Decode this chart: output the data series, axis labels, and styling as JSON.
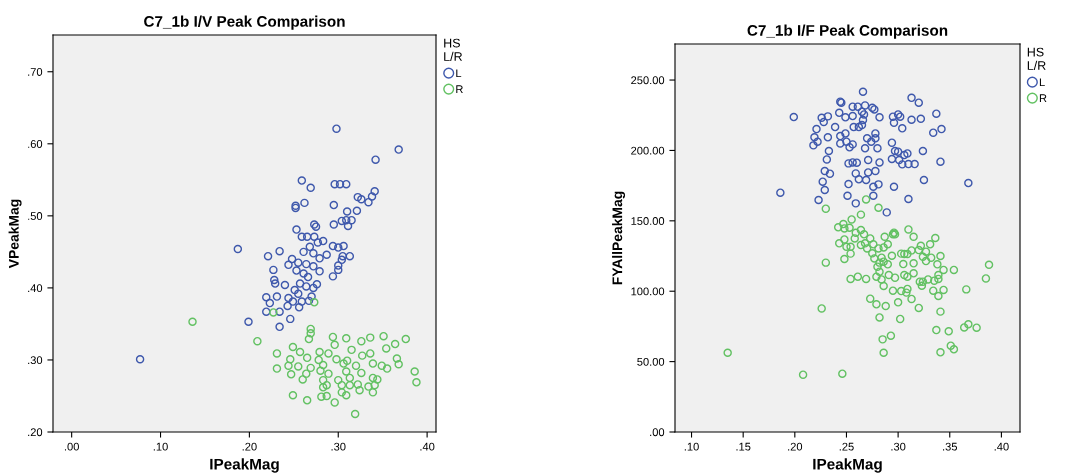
{
  "chart_data": [
    {
      "type": "scatter",
      "title": "C7_1b I/V Peak Comparison",
      "xlabel": "IPeakMag",
      "ylabel": "VPeakMag",
      "legend_title": "HS\nL/R",
      "legend": "right",
      "marker": "circle",
      "grid": false,
      "xlim": [
        -0.021,
        0.41
      ],
      "ylim": [
        0.2,
        0.751
      ],
      "xticks": [
        {
          "value": 0,
          "label": ".00"
        },
        {
          "value": 0.1,
          "label": ".10"
        },
        {
          "value": 0.2,
          "label": ".20"
        },
        {
          "value": 0.3,
          "label": ".30"
        },
        {
          "value": 0.4,
          "label": ".40"
        }
      ],
      "yticks": [
        {
          "value": 0.2,
          "label": ".20"
        },
        {
          "value": 0.3,
          "label": ".30"
        },
        {
          "value": 0.4,
          "label": ".40"
        },
        {
          "value": 0.5,
          "label": ".50"
        },
        {
          "value": 0.6,
          "label": ".60"
        },
        {
          "value": 0.7,
          "label": ".70"
        }
      ],
      "series": [
        {
          "name": "L",
          "color": "#3e58ac",
          "x": [
            0.298,
            0.368,
            0.342,
            0.259,
            0.269,
            0.296,
            0.302,
            0.309,
            0.341,
            0.338,
            0.322,
            0.326,
            0.334,
            0.262,
            0.252,
            0.252,
            0.295,
            0.31,
            0.321,
            0.315,
            0.309,
            0.304,
            0.295,
            0.311,
            0.273,
            0.275,
            0.253,
            0.259,
            0.265,
            0.273,
            0.277,
            0.283,
            0.294,
            0.3,
            0.306,
            0.187,
            0.221,
            0.234,
            0.313,
            0.305,
            0.304,
            0.261,
            0.268,
            0.272,
            0.287,
            0.279,
            0.248,
            0.255,
            0.244,
            0.264,
            0.272,
            0.3,
            0.227,
            0.253,
            0.279,
            0.3,
            0.261,
            0.294,
            0.266,
            0.228,
            0.229,
            0.24,
            0.257,
            0.264,
            0.276,
            0.251,
            0.272,
            0.255,
            0.219,
            0.231,
            0.244,
            0.27,
            0.223,
            0.249,
            0.259,
            0.267,
            0.243,
            0.256,
            0.219,
            0.234,
            0.199,
            0.246,
            0.234,
            0.077
          ],
          "values": [
            0.621,
            0.592,
            0.578,
            0.549,
            0.539,
            0.544,
            0.544,
            0.544,
            0.534,
            0.527,
            0.526,
            0.523,
            0.519,
            0.518,
            0.514,
            0.511,
            0.515,
            0.506,
            0.507,
            0.494,
            0.494,
            0.493,
            0.488,
            0.486,
            0.488,
            0.485,
            0.481,
            0.471,
            0.471,
            0.471,
            0.463,
            0.465,
            0.458,
            0.456,
            0.458,
            0.454,
            0.444,
            0.451,
            0.444,
            0.444,
            0.439,
            0.45,
            0.457,
            0.448,
            0.446,
            0.441,
            0.44,
            0.435,
            0.432,
            0.433,
            0.43,
            0.431,
            0.425,
            0.424,
            0.423,
            0.425,
            0.42,
            0.416,
            0.415,
            0.411,
            0.406,
            0.404,
            0.406,
            0.402,
            0.405,
            0.397,
            0.4,
            0.392,
            0.387,
            0.388,
            0.386,
            0.388,
            0.379,
            0.381,
            0.381,
            0.382,
            0.375,
            0.373,
            0.367,
            0.367,
            0.353,
            0.357,
            0.346,
            0.301
          ]
        },
        {
          "name": "R",
          "color": "#62c162",
          "x": [
            0.136,
            0.273,
            0.227,
            0.209,
            0.269,
            0.269,
            0.267,
            0.294,
            0.296,
            0.309,
            0.326,
            0.336,
            0.351,
            0.376,
            0.364,
            0.354,
            0.315,
            0.249,
            0.231,
            0.257,
            0.279,
            0.289,
            0.265,
            0.246,
            0.278,
            0.298,
            0.327,
            0.336,
            0.366,
            0.231,
            0.244,
            0.255,
            0.269,
            0.283,
            0.306,
            0.31,
            0.32,
            0.339,
            0.349,
            0.355,
            0.368,
            0.247,
            0.264,
            0.28,
            0.289,
            0.309,
            0.326,
            0.386,
            0.26,
            0.283,
            0.3,
            0.313,
            0.339,
            0.344,
            0.388,
            0.287,
            0.304,
            0.313,
            0.322,
            0.341,
            0.283,
            0.334,
            0.304,
            0.324,
            0.339,
            0.249,
            0.281,
            0.287,
            0.309,
            0.265,
            0.296,
            0.319
          ],
          "values": [
            0.353,
            0.38,
            0.366,
            0.326,
            0.343,
            0.337,
            0.329,
            0.332,
            0.321,
            0.33,
            0.326,
            0.331,
            0.333,
            0.329,
            0.322,
            0.316,
            0.314,
            0.318,
            0.309,
            0.311,
            0.311,
            0.309,
            0.303,
            0.301,
            0.3,
            0.301,
            0.306,
            0.309,
            0.302,
            0.288,
            0.292,
            0.291,
            0.289,
            0.293,
            0.295,
            0.299,
            0.292,
            0.295,
            0.292,
            0.288,
            0.294,
            0.28,
            0.281,
            0.285,
            0.281,
            0.284,
            0.282,
            0.284,
            0.273,
            0.272,
            0.272,
            0.275,
            0.275,
            0.273,
            0.269,
            0.265,
            0.265,
            0.265,
            0.266,
            0.265,
            0.262,
            0.263,
            0.255,
            0.258,
            0.255,
            0.251,
            0.249,
            0.25,
            0.251,
            0.244,
            0.241,
            0.225
          ]
        }
      ]
    },
    {
      "type": "scatter",
      "title": "C7_1b I/F Peak Comparison",
      "xlabel": "IPeakMag",
      "ylabel": "FYAllPeakMag",
      "legend_title": "HS\nL/R",
      "legend": "right",
      "marker": "circle",
      "grid": false,
      "xlim": [
        0.084,
        0.418
      ],
      "ylim": [
        0,
        275.6
      ],
      "xticks": [
        {
          "value": 0.1,
          "label": ".10"
        },
        {
          "value": 0.15,
          "label": ".15"
        },
        {
          "value": 0.2,
          "label": ".20"
        },
        {
          "value": 0.25,
          "label": ".25"
        },
        {
          "value": 0.3,
          "label": ".30"
        },
        {
          "value": 0.35,
          "label": ".35"
        },
        {
          "value": 0.4,
          "label": ".40"
        }
      ],
      "yticks": [
        {
          "value": 0,
          "label": ".00"
        },
        {
          "value": 50,
          "label": "50.00"
        },
        {
          "value": 100,
          "label": "100.00"
        },
        {
          "value": 150,
          "label": "150.00"
        },
        {
          "value": 200,
          "label": "200.00"
        },
        {
          "value": 250,
          "label": "250.00"
        }
      ],
      "series": [
        {
          "name": "L",
          "color": "#3e58ac",
          "x": [
            0.266,
            0.244,
            0.245,
            0.313,
            0.32,
            0.199,
            0.226,
            0.232,
            0.228,
            0.256,
            0.261,
            0.268,
            0.275,
            0.277,
            0.243,
            0.249,
            0.256,
            0.265,
            0.267,
            0.266,
            0.265,
            0.282,
            0.295,
            0.3,
            0.302,
            0.296,
            0.304,
            0.313,
            0.322,
            0.337,
            0.342,
            0.334,
            0.221,
            0.219,
            0.222,
            0.218,
            0.232,
            0.239,
            0.244,
            0.249,
            0.244,
            0.25,
            0.253,
            0.256,
            0.257,
            0.262,
            0.27,
            0.274,
            0.278,
            0.278,
            0.268,
            0.28,
            0.294,
            0.297,
            0.3,
            0.309,
            0.306,
            0.324,
            0.294,
            0.301,
            0.304,
            0.31,
            0.316,
            0.341,
            0.368,
            0.325,
            0.233,
            0.231,
            0.252,
            0.256,
            0.26,
            0.271,
            0.282,
            0.229,
            0.234,
            0.227,
            0.229,
            0.259,
            0.262,
            0.269,
            0.271,
            0.278,
            0.252,
            0.251,
            0.259,
            0.276,
            0.281,
            0.276,
            0.296,
            0.31,
            0.186,
            0.223,
            0.289
          ],
          "values": [
            241.7,
            234.6,
            233.9,
            237.4,
            233.9,
            223.7,
            223.2,
            224.2,
            220.2,
            231.1,
            231.1,
            232.0,
            230.3,
            229.1,
            226.7,
            223.5,
            224.4,
            227.5,
            225.6,
            221.6,
            218.0,
            223.5,
            224.0,
            225.6,
            224.0,
            219.7,
            215.7,
            221.8,
            222.5,
            226.1,
            215.2,
            212.6,
            215.2,
            209.3,
            206.2,
            203.6,
            209.3,
            216.6,
            210.2,
            212.1,
            205.0,
            206.2,
            202.2,
            204.3,
            216.6,
            216.6,
            208.6,
            206.2,
            212.1,
            208.6,
            201.5,
            201.5,
            205.5,
            199.6,
            199.1,
            197.9,
            196.7,
            199.6,
            193.9,
            193.2,
            190.1,
            190.3,
            190.3,
            192.0,
            176.8,
            179.0,
            199.6,
            193.6,
            190.8,
            191.5,
            191.3,
            193.2,
            191.5,
            185.4,
            183.5,
            177.8,
            171.9,
            183.7,
            179.5,
            179.0,
            184.4,
            185.4,
            176.1,
            167.8,
            162.4,
            174.2,
            175.9,
            167.8,
            174.2,
            165.5,
            170.0,
            164.8,
            156.0
          ]
        },
        {
          "name": "R",
          "color": "#62c162",
          "x": [
            0.269,
            0.281,
            0.23,
            0.264,
            0.255,
            0.242,
            0.247,
            0.253,
            0.248,
            0.259,
            0.264,
            0.267,
            0.273,
            0.258,
            0.243,
            0.248,
            0.25,
            0.254,
            0.264,
            0.268,
            0.27,
            0.276,
            0.281,
            0.286,
            0.29,
            0.248,
            0.254,
            0.287,
            0.295,
            0.296,
            0.297,
            0.31,
            0.315,
            0.336,
            0.23,
            0.275,
            0.277,
            0.284,
            0.294,
            0.282,
            0.286,
            0.29,
            0.303,
            0.306,
            0.309,
            0.313,
            0.32,
            0.322,
            0.324,
            0.327,
            0.331,
            0.332,
            0.341,
            0.338,
            0.305,
            0.315,
            0.327,
            0.339,
            0.344,
            0.354,
            0.28,
            0.282,
            0.279,
            0.284,
            0.291,
            0.297,
            0.286,
            0.306,
            0.309,
            0.315,
            0.321,
            0.324,
            0.329,
            0.335,
            0.339,
            0.254,
            0.261,
            0.269,
            0.295,
            0.303,
            0.309,
            0.308,
            0.323,
            0.334,
            0.344,
            0.339,
            0.366,
            0.388,
            0.385,
            0.273,
            0.279,
            0.288,
            0.3,
            0.313,
            0.32,
            0.341,
            0.226,
            0.282,
            0.302,
            0.337,
            0.349,
            0.364,
            0.368,
            0.376,
            0.285,
            0.293,
            0.286,
            0.351,
            0.354,
            0.341,
            0.135,
            0.208,
            0.246
          ],
          "values": [
            165.2,
            159.3,
            158.6,
            154.4,
            151.0,
            145.4,
            147.7,
            145.1,
            144.6,
            141.5,
            143.5,
            140.4,
            137.5,
            137.5,
            134.0,
            136.8,
            131.6,
            131.6,
            132.8,
            134.0,
            130.4,
            133.3,
            130.4,
            131.1,
            133.3,
            122.9,
            126.7,
            138.7,
            140.4,
            141.6,
            140.4,
            143.9,
            138.7,
            137.8,
            120.3,
            126.9,
            123.3,
            123.8,
            125.2,
            120.3,
            121.0,
            119.1,
            126.7,
            126.5,
            126.5,
            129.0,
            129.2,
            132.3,
            124.5,
            128.1,
            133.3,
            123.8,
            125.0,
            119.1,
            119.3,
            119.8,
            121.4,
            111.5,
            115.1,
            115.1,
            117.4,
            113.9,
            110.3,
            108.4,
            111.5,
            109.6,
            103.7,
            111.5,
            110.3,
            112.7,
            106.8,
            106.8,
            108.4,
            107.5,
            108.7,
            108.7,
            110.3,
            108.7,
            100.4,
            100.1,
            101.6,
            99.0,
            103.9,
            100.4,
            100.9,
            96.6,
            101.3,
            118.8,
            109.1,
            94.7,
            90.7,
            89.5,
            92.1,
            94.5,
            88.1,
            85.5,
            87.8,
            81.4,
            80.3,
            72.4,
            71.5,
            74.3,
            76.5,
            74.1,
            65.8,
            68.4,
            56.3,
            61.3,
            58.7,
            56.6,
            56.3,
            40.7,
            41.4
          ]
        }
      ]
    }
  ]
}
